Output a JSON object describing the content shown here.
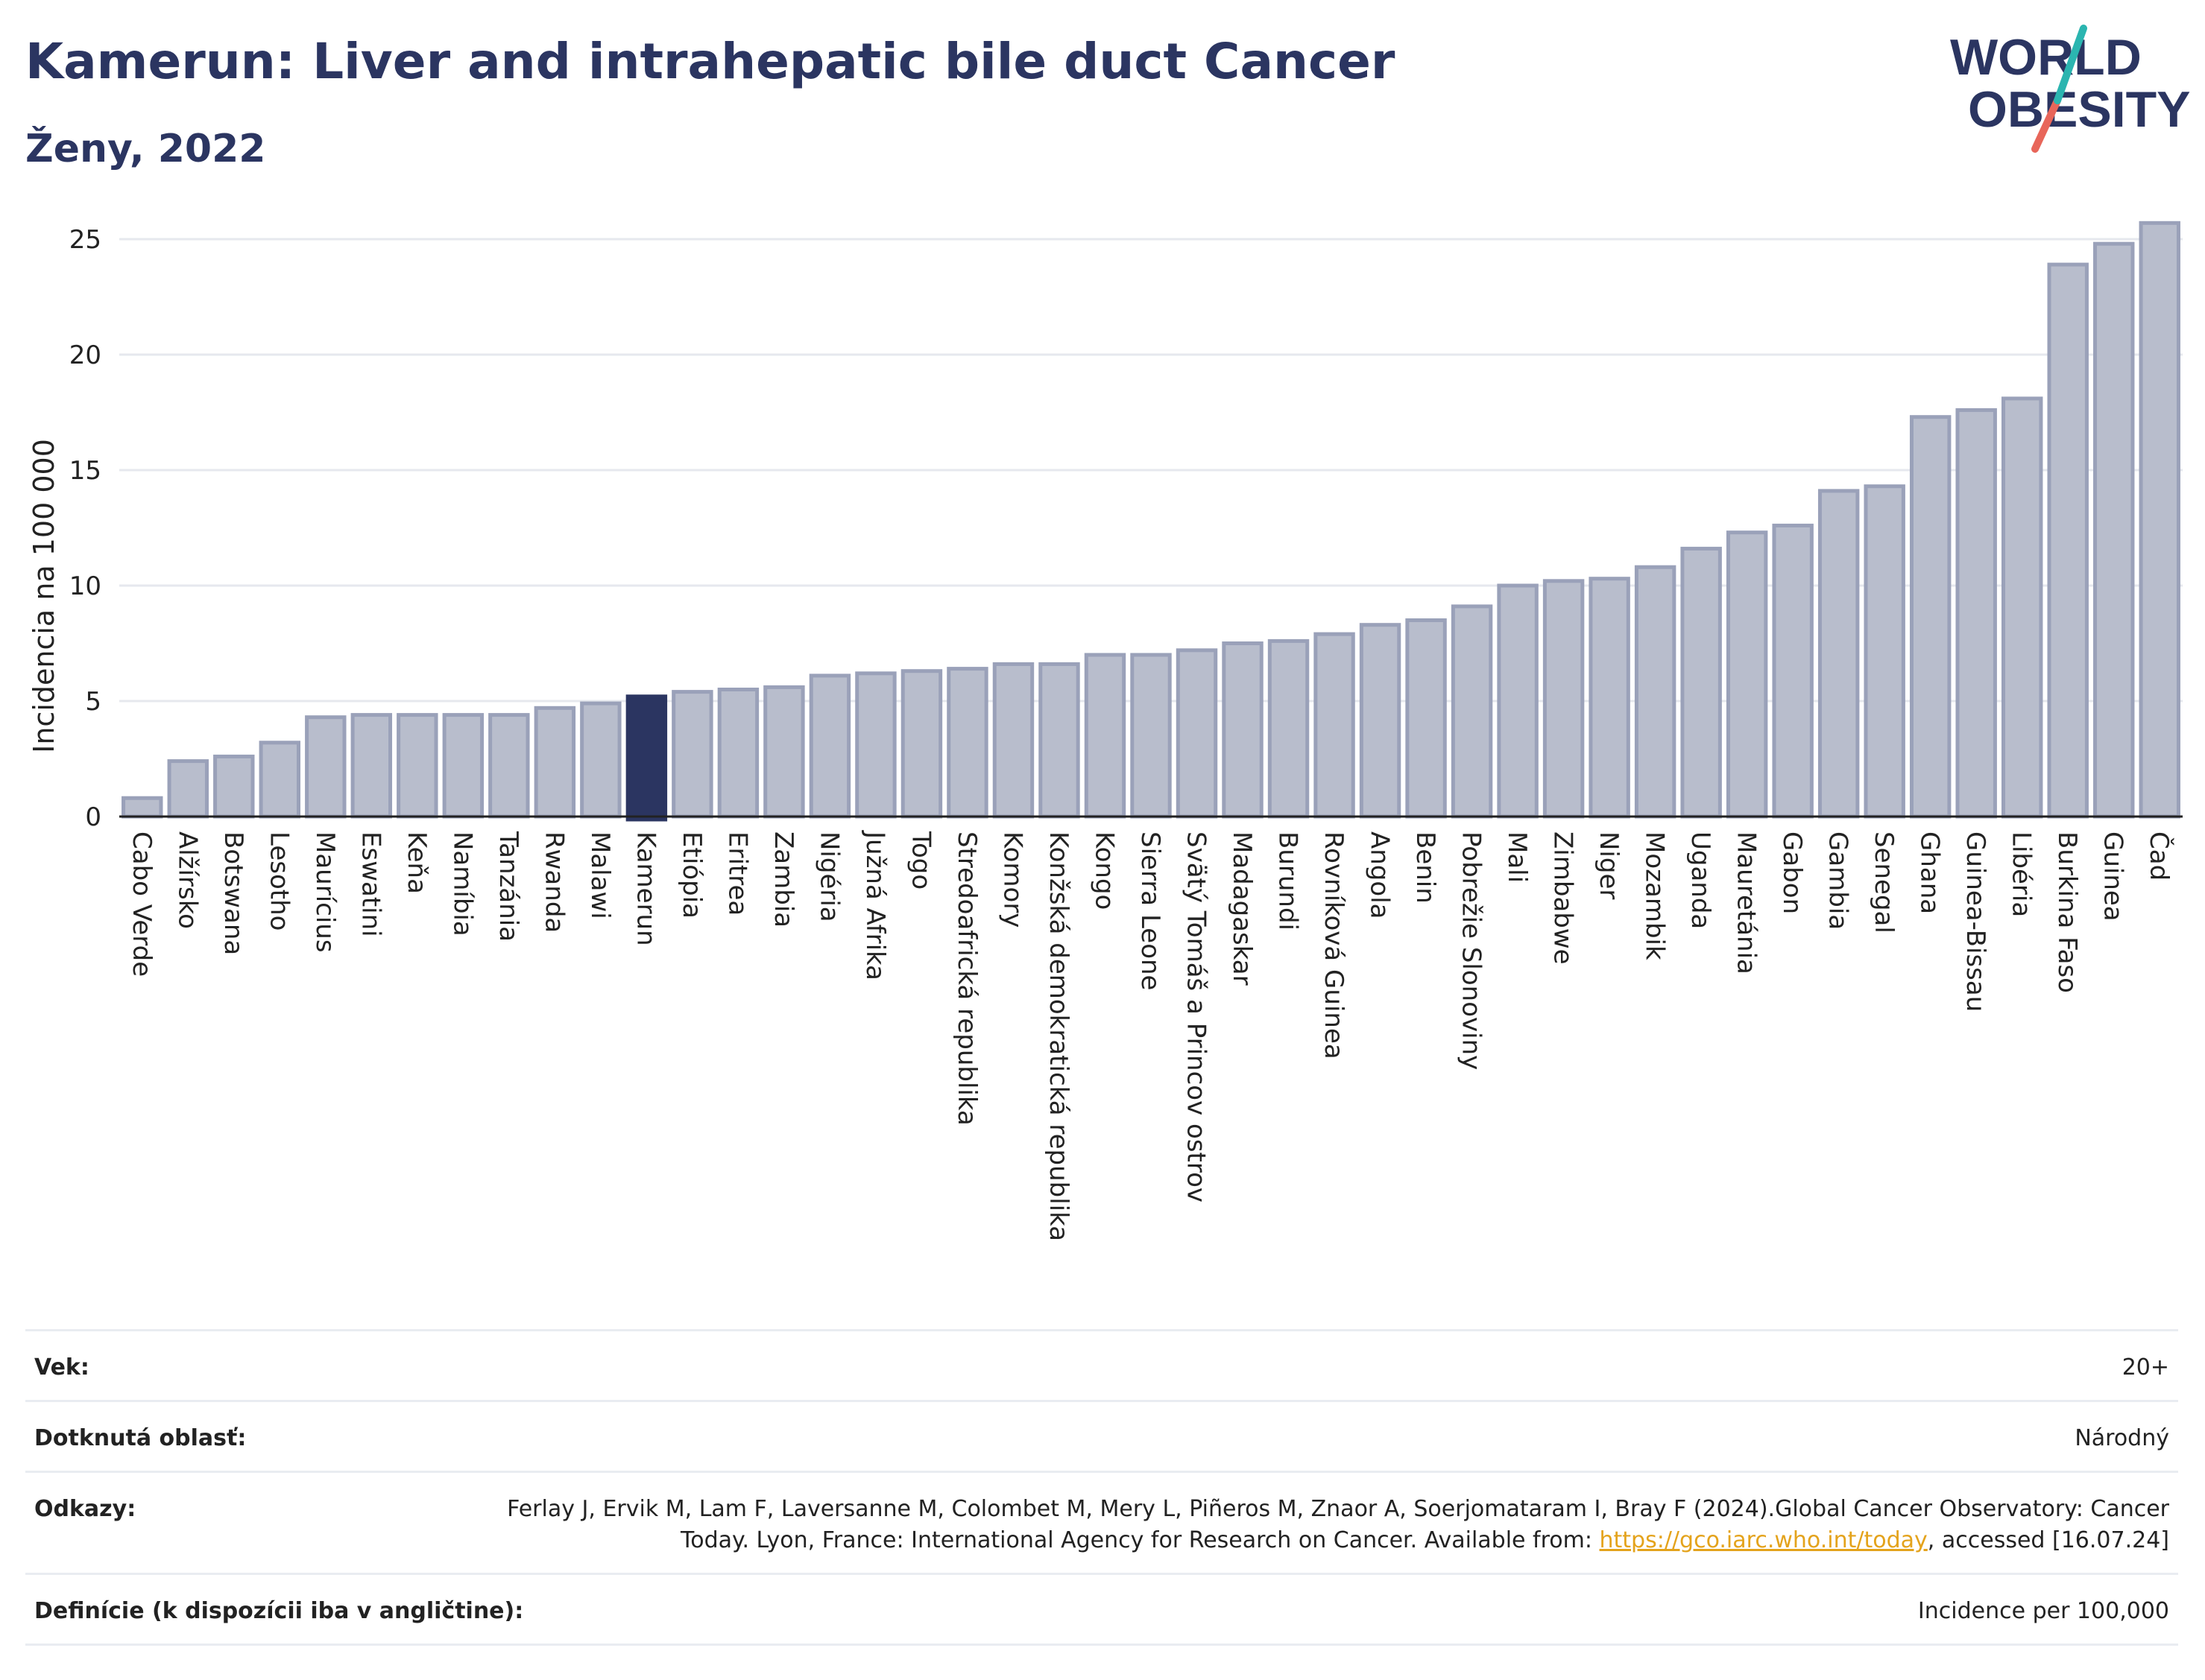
{
  "header": {
    "title": "Kamerun: Liver and intrahepatic bile duct Cancer",
    "subtitle": "Ženy, 2022"
  },
  "logo": {
    "text_line1": "WORLD",
    "text_line2": "OBESITY",
    "colors": {
      "text": "#2b3561",
      "slash_teal": "#2bb5b0",
      "slash_red": "#e8665a"
    }
  },
  "chart_data": {
    "type": "bar",
    "ylabel": "Incidencia na 100 000",
    "xlabel": "",
    "ylim": [
      0,
      26
    ],
    "yticks": [
      0,
      5,
      10,
      15,
      20,
      25
    ],
    "grid": true,
    "highlight": "Kamerun",
    "colors": {
      "bar": "#b8bdcc",
      "bar_edge": "#9aa1b9",
      "highlight": "#2b3561"
    },
    "categories": [
      "Cabo Verde",
      "Alžírsko",
      "Botswana",
      "Lesotho",
      "Maurícius",
      "Eswatini",
      "Keňa",
      "Namíbia",
      "Tanzánia",
      "Rwanda",
      "Malawi",
      "Kamerun",
      "Etiópia",
      "Eritrea",
      "Zambia",
      "Nigéria",
      "Južná Afrika",
      "Togo",
      "Stredoafrická republika",
      "Komory",
      "Konžská demokratická republika",
      "Kongo",
      "Sierra Leone",
      "Svätý Tomáš a Princov ostrov",
      "Madagaskar",
      "Burundi",
      "Rovníková Guinea",
      "Angola",
      "Benin",
      "Pobrežie Slonoviny",
      "Mali",
      "Zimbabwe",
      "Niger",
      "Mozambik",
      "Uganda",
      "Mauretánia",
      "Gabon",
      "Gambia",
      "Senegal",
      "Ghana",
      "Guinea-Bissau",
      "Libéria",
      "Burkina Faso",
      "Guinea",
      "Čad"
    ],
    "values": [
      0.8,
      2.4,
      2.6,
      3.2,
      4.3,
      4.4,
      4.4,
      4.4,
      4.4,
      4.7,
      4.9,
      5.2,
      5.4,
      5.5,
      5.6,
      6.1,
      6.2,
      6.3,
      6.4,
      6.6,
      6.6,
      7.0,
      7.0,
      7.2,
      7.5,
      7.6,
      7.9,
      8.3,
      8.5,
      9.1,
      10.0,
      10.2,
      10.3,
      10.8,
      11.6,
      12.3,
      12.6,
      14.1,
      14.3,
      17.3,
      17.6,
      18.1,
      23.9,
      24.8,
      25.7
    ]
  },
  "meta": {
    "age_label": "Vek:",
    "age_value": "20+",
    "area_label": "Dotknutá oblasť:",
    "area_value": "Národný",
    "refs_label": "Odkazy:",
    "refs_text_1": "Ferlay J, Ervik M, Lam F, Laversanne M, Colombet M, Mery L, Piñeros M, Znaor A, Soerjomataram I, Bray F (2024).Global Cancer Observatory: Cancer Today. Lyon, France: International Agency for Research on Cancer. Available from: ",
    "refs_link": "https://gco.iarc.who.int/today",
    "refs_text_2": ", accessed [16.07.24]",
    "defs_label": "Definície (k dispozícii iba v angličtine):",
    "defs_value": "Incidence per 100,000"
  }
}
